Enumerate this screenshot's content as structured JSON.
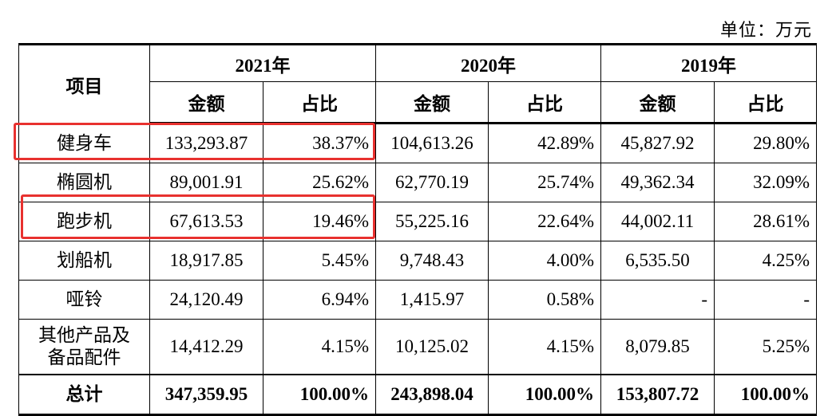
{
  "unit_label": "单位：万元",
  "header": {
    "item_label": "项目",
    "years": [
      "2021年",
      "2020年",
      "2019年"
    ],
    "amount_label": "金额",
    "ratio_label": "占比"
  },
  "rows": [
    {
      "item": "健身车",
      "v": [
        "133,293.87",
        "38.37%",
        "104,613.26",
        "42.89%",
        "45,827.92",
        "29.80%"
      ]
    },
    {
      "item": "椭圆机",
      "v": [
        "89,001.91",
        "25.62%",
        "62,770.19",
        "25.74%",
        "49,362.34",
        "32.09%"
      ]
    },
    {
      "item": "跑步机",
      "v": [
        "67,613.53",
        "19.46%",
        "55,225.16",
        "22.64%",
        "44,002.11",
        "28.61%"
      ]
    },
    {
      "item": "划船机",
      "v": [
        "18,917.85",
        "5.45%",
        "9,748.43",
        "4.00%",
        "6,535.50",
        "4.25%"
      ]
    },
    {
      "item": "哑铃",
      "v": [
        "24,120.49",
        "6.94%",
        "1,415.97",
        "0.58%",
        "-",
        "-"
      ]
    },
    {
      "item_line1": "其他产品及",
      "item_line2": "备品配件",
      "v": [
        "14,412.29",
        "4.15%",
        "10,125.02",
        "4.15%",
        "8,079.85",
        "5.25%"
      ]
    }
  ],
  "total": {
    "item": "总计",
    "v": [
      "347,359.95",
      "100.00%",
      "243,898.04",
      "100.00%",
      "153,807.72",
      "100.00%"
    ]
  },
  "highlight_color": "#e8312f"
}
